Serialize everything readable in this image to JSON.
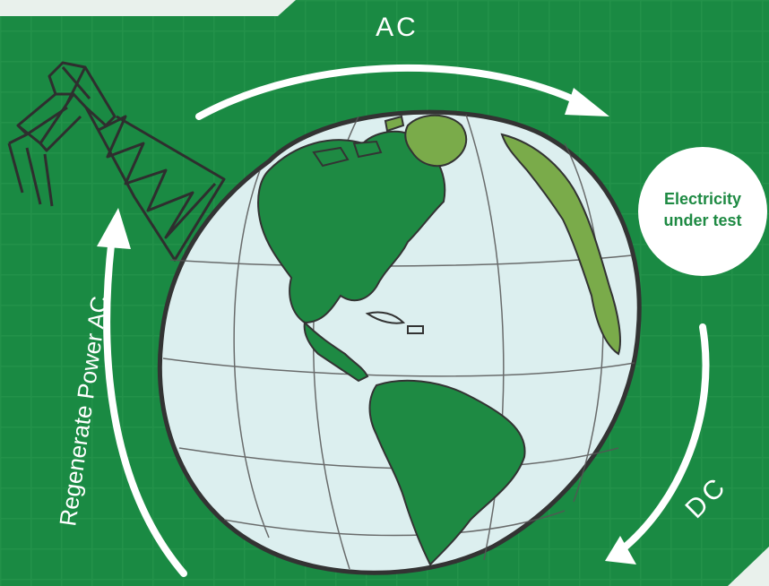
{
  "labels": {
    "ac_top": "AC",
    "dc": "DC",
    "regenerate": "Regenerate Power AC",
    "badge_line1": "Electricity",
    "badge_line2": "under test"
  },
  "colors": {
    "background": "#1a8a43",
    "grid": "#2a9950",
    "ocean": "#dcefef",
    "land": "#1e8a43",
    "land_accent": "#7aab4a",
    "outline": "#333333",
    "arrow": "#ffffff",
    "badge_text": "#1e8a43"
  },
  "icons": {
    "tower": "power-transmission-tower",
    "globe": "earth-globe-americas"
  }
}
